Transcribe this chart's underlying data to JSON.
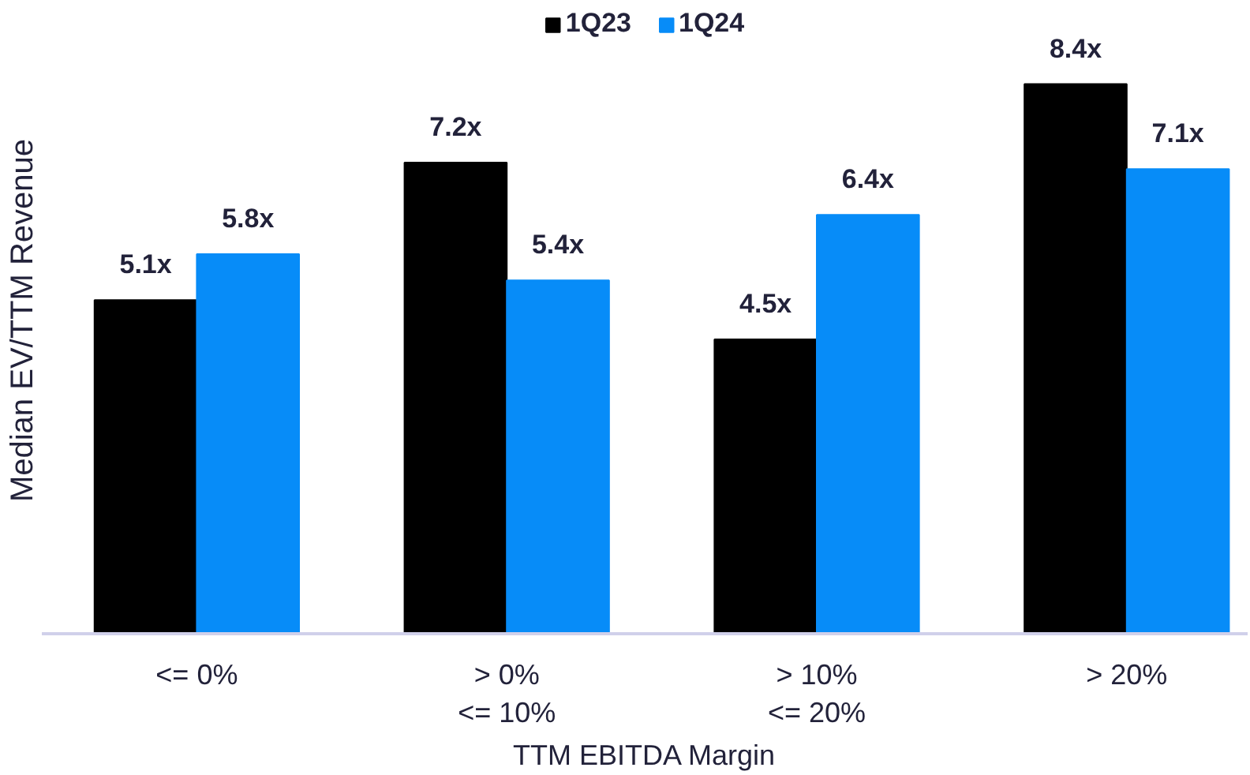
{
  "chart_data": {
    "type": "bar",
    "xlabel": "TTM EBITDA Margin",
    "ylabel": "Median EV/TTM Revenue",
    "categories": [
      "<= 0%",
      "> 0%\n<= 10%",
      "> 10%\n<= 20%",
      "> 20%"
    ],
    "series": [
      {
        "name": "1Q23",
        "color": "#000000",
        "values": [
          5.1,
          7.2,
          4.5,
          8.4
        ],
        "value_labels": [
          "5.1x",
          "7.2x",
          "4.5x",
          "8.4x"
        ]
      },
      {
        "name": "1Q24",
        "color": "#078cf8",
        "values": [
          5.8,
          5.4,
          6.4,
          7.1
        ],
        "value_labels": [
          "5.8x",
          "5.4x",
          "6.4x",
          "7.1x"
        ]
      }
    ],
    "legend": "top",
    "tick_labels": "x"
  }
}
